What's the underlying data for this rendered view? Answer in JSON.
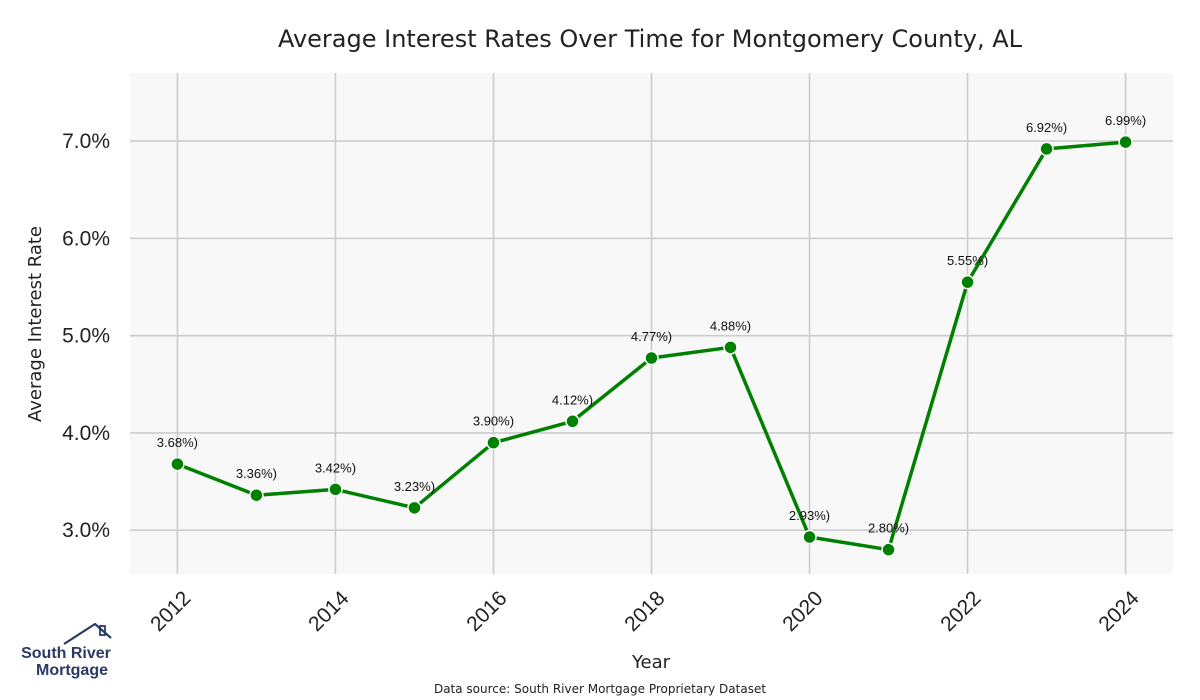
{
  "chart_data": {
    "type": "line",
    "title": "Average Interest Rates Over Time for Montgomery County, AL",
    "xlabel": "Year",
    "ylabel": "Average Interest Rate",
    "x": [
      2012,
      2013,
      2014,
      2015,
      2016,
      2017,
      2018,
      2019,
      2020,
      2021,
      2022,
      2023,
      2024
    ],
    "values": [
      3.68,
      3.36,
      3.42,
      3.23,
      3.9,
      4.12,
      4.77,
      4.88,
      2.93,
      2.8,
      5.55,
      6.92,
      6.99
    ],
    "data_labels": [
      "3.68%)",
      "3.36%)",
      "3.42%)",
      "3.23%)",
      "3.90%)",
      "4.12%)",
      "4.77%)",
      "4.88%)",
      "2.93%)",
      "2.80%)",
      "5.55%)",
      "6.92%)",
      "6.99%)"
    ],
    "x_ticks": [
      "2012",
      "2014",
      "2016",
      "2018",
      "2020",
      "2022",
      "2024"
    ],
    "y_ticks": [
      3.0,
      4.0,
      5.0,
      6.0,
      7.0
    ],
    "y_tick_labels": [
      "3.0%",
      "4.0%",
      "5.0%",
      "6.0%",
      "7.0%"
    ],
    "xlim": [
      2011.4,
      2024.6
    ],
    "ylim": [
      2.55,
      7.7
    ],
    "grid": true,
    "legend": "none",
    "line_color": "#008000",
    "marker_color": "#008000",
    "background_color": "#f8f8f8",
    "grid_color": "#cccccc"
  },
  "source_note": "Data source: South River Mortgage Proprietary Dataset",
  "logo": {
    "line1": "South River",
    "line2": "Mortgage",
    "color": "#2b3a67"
  }
}
